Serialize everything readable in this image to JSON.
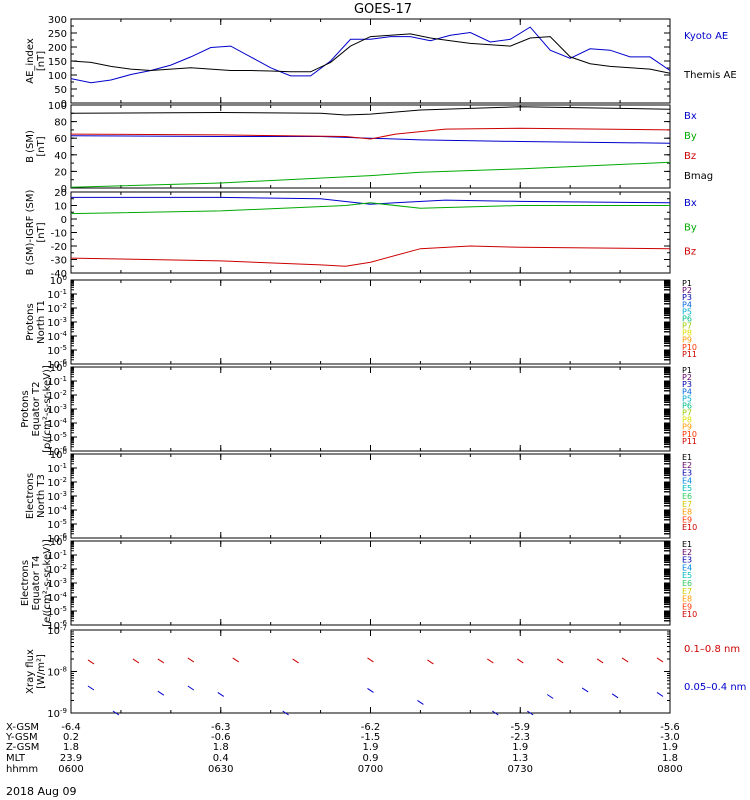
{
  "title": "GOES-17",
  "date": "2018 Aug 09",
  "panels": [
    {
      "id": "ae",
      "ylabel": [
        "AE_index",
        "[nT]"
      ],
      "ticks": [
        "300",
        "250",
        "200",
        "150",
        "100",
        "50",
        "0"
      ],
      "legend": [
        {
          "text": "Kyoto AE",
          "color": "#0000cc"
        },
        {
          "text": "Themis AE",
          "color": "#000000"
        }
      ]
    },
    {
      "id": "bsm",
      "ylabel": [
        "B (SM)",
        "[nT]"
      ],
      "ticks": [
        "100",
        "80",
        "60",
        "40",
        "20",
        "0"
      ],
      "legend": [
        {
          "text": "Bx",
          "color": "#0000cc"
        },
        {
          "text": "By",
          "color": "#00aa00"
        },
        {
          "text": "Bz",
          "color": "#cc0000"
        },
        {
          "text": "Bmag",
          "color": "#000000"
        }
      ]
    },
    {
      "id": "bigrf",
      "ylabel": [
        "B (SM)-IGRF (SM)",
        "[nT]"
      ],
      "ticks": [
        "20",
        "10",
        "0",
        "-10",
        "-20",
        "-30",
        "-40"
      ],
      "legend": [
        {
          "text": "Bx",
          "color": "#0000cc"
        },
        {
          "text": "By",
          "color": "#00aa00"
        },
        {
          "text": "Bz",
          "color": "#cc0000"
        }
      ]
    },
    {
      "id": "pt1",
      "ylabel": [
        "Protons",
        "North T1"
      ],
      "ticks": [
        "10^0",
        "10^-1",
        "10^-2",
        "10^-3",
        "10^-4",
        "10^-5",
        "10^-6"
      ],
      "channels": [
        "P1",
        "P2",
        "P3",
        "P4",
        "P5",
        "P6",
        "P7",
        "P8",
        "P9",
        "P10",
        "P11"
      ]
    },
    {
      "id": "pt2",
      "ylabel": [
        "Protons",
        "Equator T2",
        "[p/(cm²-s-sr-keV)]"
      ],
      "ticks": [
        "10^0",
        "10^-1",
        "10^-2",
        "10^-3",
        "10^-4",
        "10^-5",
        "10^-6"
      ],
      "channels": [
        "P1",
        "P2",
        "P3",
        "P4",
        "P5",
        "P6",
        "P7",
        "P8",
        "P9",
        "P10",
        "P11"
      ]
    },
    {
      "id": "et3",
      "ylabel": [
        "Electrons",
        "North T3"
      ],
      "ticks": [
        "10^0",
        "10^-1",
        "10^-2",
        "10^-3",
        "10^-4",
        "10^-5",
        "10^-6"
      ],
      "channels": [
        "E1",
        "E2",
        "E3",
        "E4",
        "E5",
        "E6",
        "E7",
        "E8",
        "E9",
        "E10"
      ]
    },
    {
      "id": "et4",
      "ylabel": [
        "Electrons",
        "Equator T4",
        "[e/(cm²-s-sr-keV)]"
      ],
      "ticks": [
        "10^0",
        "10^-1",
        "10^-2",
        "10^-3",
        "10^-4",
        "10^-5",
        "10^-6"
      ],
      "channels": [
        "E1",
        "E2",
        "E3",
        "E4",
        "E5",
        "E6",
        "E7",
        "E8",
        "E9",
        "E10"
      ]
    },
    {
      "id": "xray",
      "ylabel": [
        "Xray flux",
        "[W/m²]"
      ],
      "ticks": [
        "10^-7",
        "10^-8",
        "10^-9"
      ],
      "legend": [
        {
          "text": "0.1–0.8 nm",
          "color": "#cc0000"
        },
        {
          "text": "0.05–0.4 nm",
          "color": "#0000cc"
        }
      ]
    }
  ],
  "channel_colors": {
    "P": [
      "#000000",
      "#660066",
      "#0000aa",
      "#0066dd",
      "#00aacc",
      "#00bb88",
      "#99cc00",
      "#dddd00",
      "#ff9900",
      "#ff3300",
      "#cc0000"
    ],
    "E": [
      "#000000",
      "#660066",
      "#0000aa",
      "#0088dd",
      "#00bbbb",
      "#33cc66",
      "#cccc00",
      "#ff9900",
      "#ff3300",
      "#cc0000"
    ]
  },
  "bottom_axis": {
    "row_labels": [
      "X-GSM",
      "Y-GSM",
      "Z-GSM",
      "MLT",
      "hhmm"
    ],
    "columns": [
      [
        "-6.4",
        "0.2",
        "1.8",
        "23.9",
        "0600"
      ],
      [
        "-6.3",
        "-0.6",
        "1.8",
        "0.4",
        "0630"
      ],
      [
        "-6.2",
        "-1.5",
        "1.9",
        "0.9",
        "0700"
      ],
      [
        "-5.9",
        "-2.3",
        "1.9",
        "1.3",
        "0730"
      ],
      [
        "-5.6",
        "-3.0",
        "1.9",
        "1.8",
        "0800"
      ]
    ]
  },
  "chart_data": {
    "type": "line",
    "title": "GOES-17",
    "x_range_minutes": [
      0,
      120
    ],
    "x_tick_minutes": [
      0,
      30,
      60,
      90,
      120
    ],
    "series_sets": [
      {
        "panel": "ae",
        "ylim": [
          0,
          310
        ],
        "series": [
          {
            "name": "Kyoto AE",
            "color": "#0000cc",
            "x": [
              0,
              4,
              8,
              12,
              16,
              20,
              24,
              28,
              32,
              36,
              40,
              44,
              48,
              52,
              56,
              60,
              64,
              68,
              72,
              76,
              80,
              84,
              88,
              92,
              96,
              100,
              104,
              108,
              112,
              116,
              120
            ],
            "y": [
              90,
              75,
              85,
              105,
              120,
              140,
              170,
              205,
              210,
              170,
              130,
              100,
              100,
              155,
              235,
              235,
              245,
              245,
              230,
              250,
              260,
              225,
              235,
              280,
              195,
              165,
              200,
              195,
              170,
              170,
              120
            ]
          },
          {
            "name": "Themis AE",
            "color": "#000000",
            "x": [
              0,
              4,
              8,
              12,
              16,
              20,
              24,
              28,
              32,
              36,
              40,
              44,
              48,
              52,
              56,
              60,
              64,
              68,
              72,
              76,
              80,
              84,
              88,
              92,
              96,
              100,
              104,
              108,
              112,
              116,
              120
            ],
            "y": [
              155,
              150,
              135,
              125,
              120,
              125,
              130,
              125,
              120,
              120,
              118,
              115,
              115,
              150,
              210,
              245,
              250,
              255,
              240,
              230,
              220,
              215,
              210,
              240,
              245,
              170,
              145,
              135,
              130,
              125,
              110
            ]
          }
        ]
      },
      {
        "panel": "bsm",
        "ylim": [
          0,
          100
        ],
        "series": [
          {
            "name": "Bx",
            "color": "#0000cc",
            "x": [
              0,
              30,
              50,
              60,
              70,
              90,
              120
            ],
            "y": [
              63,
              62,
              62,
              60,
              58,
              56,
              54
            ]
          },
          {
            "name": "By",
            "color": "#00aa00",
            "x": [
              0,
              30,
              60,
              70,
              90,
              120
            ],
            "y": [
              1,
              6,
              15,
              19,
              23,
              31
            ]
          },
          {
            "name": "Bz",
            "color": "#cc0000",
            "x": [
              0,
              30,
              55,
              60,
              65,
              75,
              90,
              120
            ],
            "y": [
              65,
              64,
              62,
              59,
              65,
              71,
              72,
              70
            ]
          },
          {
            "name": "Bmag",
            "color": "#000000",
            "x": [
              0,
              30,
              50,
              55,
              60,
              70,
              90,
              120
            ],
            "y": [
              90,
              91,
              90,
              88,
              89,
              94,
              98,
              95
            ]
          }
        ]
      },
      {
        "panel": "bigrf",
        "ylim": [
          -40,
          20
        ],
        "series": [
          {
            "name": "Bx",
            "color": "#0000cc",
            "x": [
              0,
              30,
              50,
              60,
              65,
              75,
              90,
              120
            ],
            "y": [
              16,
              16,
              15,
              11,
              12,
              14,
              13,
              12
            ]
          },
          {
            "name": "By",
            "color": "#00aa00",
            "x": [
              0,
              30,
              55,
              60,
              70,
              90,
              120
            ],
            "y": [
              4,
              6,
              10,
              12,
              8,
              10,
              10
            ]
          },
          {
            "name": "Bz",
            "color": "#cc0000",
            "x": [
              0,
              30,
              50,
              55,
              60,
              70,
              80,
              90,
              120
            ],
            "y": [
              -29,
              -31,
              -34,
              -35,
              -32,
              -22,
              -20,
              -21,
              -22
            ]
          }
        ]
      },
      {
        "panel": "xray",
        "ylim_log10": [
          -9,
          -7
        ],
        "series": [
          {
            "name": "0.1–0.8 nm",
            "color": "#cc0000",
            "x": [
              4,
              13,
              18,
              24,
              33,
              45,
              60,
              72,
              84,
              90,
              98,
              106,
              111,
              118
            ],
            "y": [
              1.7e-08,
              1.8e-08,
              1.8e-08,
              1.9e-08,
              1.9e-08,
              1.8e-08,
              1.9e-08,
              1.7e-08,
              1.8e-08,
              1.8e-08,
              1.8e-08,
              1.8e-08,
              1.9e-08,
              1.9e-08
            ]
          },
          {
            "name": "0.05–0.4 nm",
            "color": "#0000cc",
            "x": [
              4,
              9,
              18,
              24,
              30,
              43,
              60,
              70,
              85,
              92,
              96,
              103,
              109,
              118
            ],
            "y": [
              4e-09,
              1e-09,
              3e-09,
              4e-09,
              2.8e-09,
              1e-09,
              3.5e-09,
              1.8e-09,
              1e-09,
              1e-09,
              2.5e-09,
              3.6e-09,
              2.6e-09,
              2.8e-09
            ]
          }
        ]
      }
    ]
  }
}
